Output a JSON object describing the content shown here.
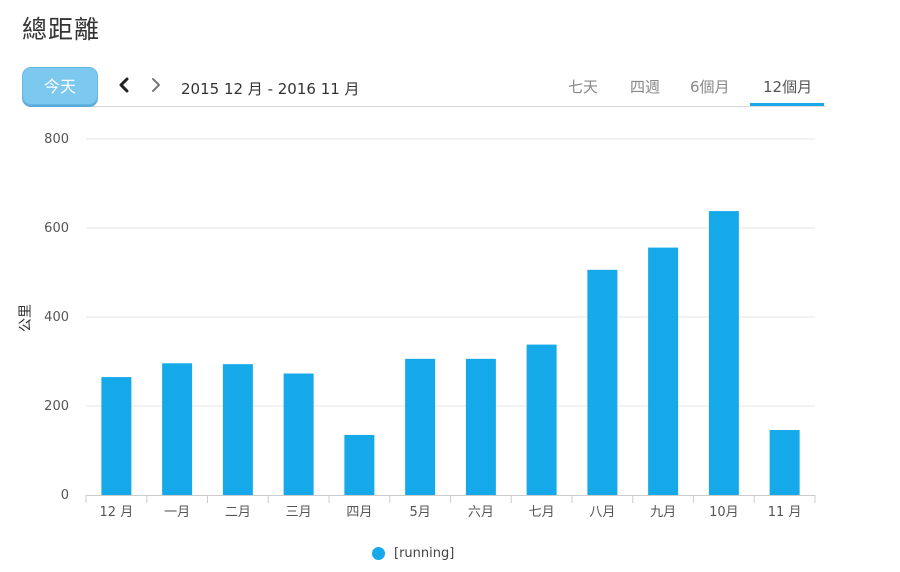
{
  "page": {
    "title": "總距離"
  },
  "toolbar": {
    "today_label": "今天",
    "prev_icon": "chevron-left-icon",
    "next_icon": "chevron-right-icon",
    "date_range": "2015 12 月 - 2016 11 月",
    "range_tabs": [
      {
        "label": "七天",
        "active": false
      },
      {
        "label": "四週",
        "active": false
      },
      {
        "label": "6個月",
        "active": false
      },
      {
        "label": "12個月",
        "active": true
      }
    ]
  },
  "colors": {
    "bar": "#16a9ea",
    "accent": "#1aa7e8",
    "grid": "#e6e6e6"
  },
  "chart_data": {
    "type": "bar",
    "title": "",
    "xlabel": "",
    "ylabel": "公里",
    "ylim": [
      0,
      800
    ],
    "yticks": [
      0,
      200,
      400,
      600,
      800
    ],
    "grid": true,
    "legend_position": "bottom-center",
    "categories": [
      "12 月",
      "一月",
      "二月",
      "三月",
      "四月",
      "5月",
      "六月",
      "七月",
      "八月",
      "九月",
      "10月",
      "11 月"
    ],
    "series": [
      {
        "name": "[running]",
        "color": "#16a9ea",
        "values": [
          265,
          296,
          294,
          273,
          135,
          306,
          306,
          338,
          506,
          556,
          638,
          146
        ]
      }
    ]
  }
}
